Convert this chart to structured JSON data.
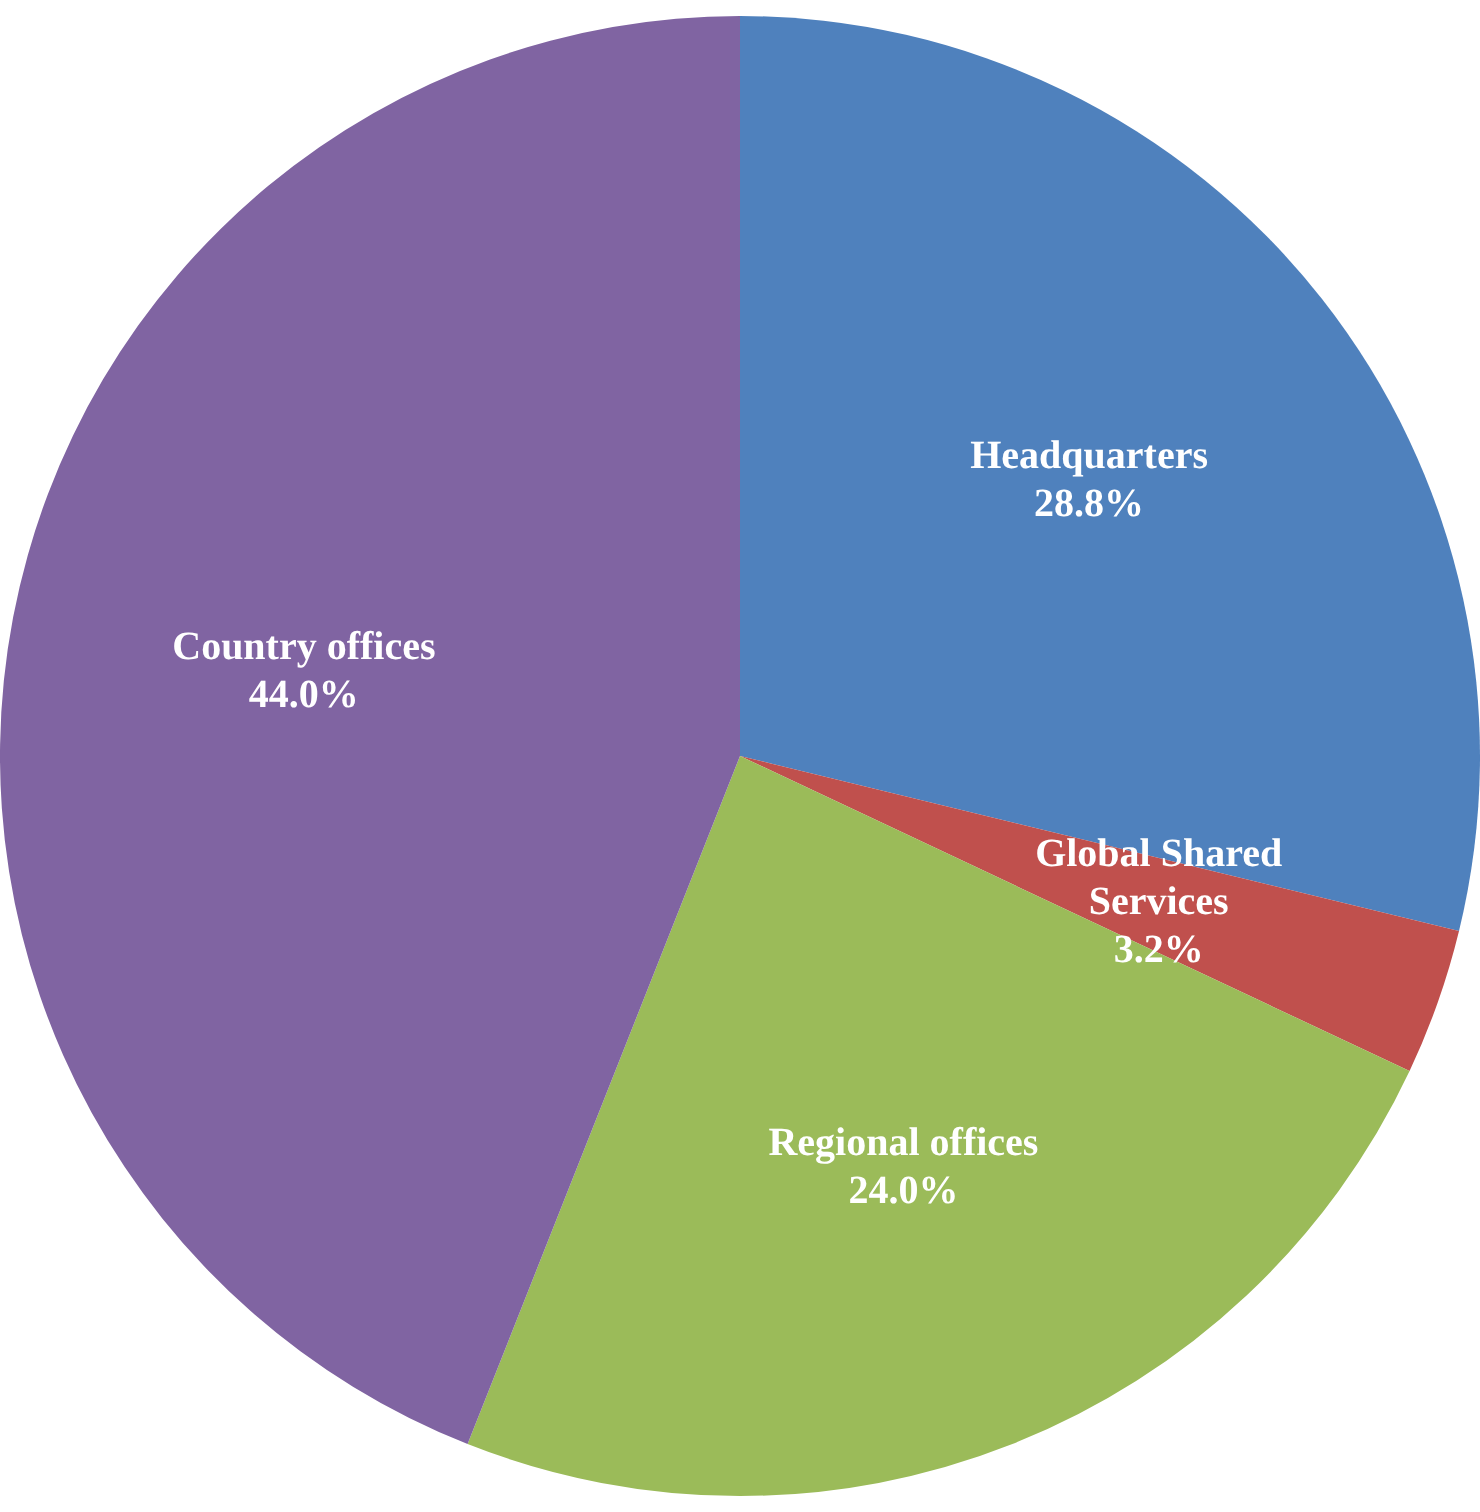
{
  "chart_data": {
    "type": "pie",
    "categories": [
      "Headquarters",
      "Global Shared Services",
      "Regional offices",
      "Country offices"
    ],
    "values": [
      28.8,
      3.2,
      24.0,
      44.0
    ],
    "colors": [
      "#4f81bd",
      "#c0504d",
      "#9bbb59",
      "#8064a2"
    ],
    "value_labels": [
      "28.8%",
      "3.2%",
      "24.0%",
      "44.0%"
    ],
    "legend": false
  }
}
